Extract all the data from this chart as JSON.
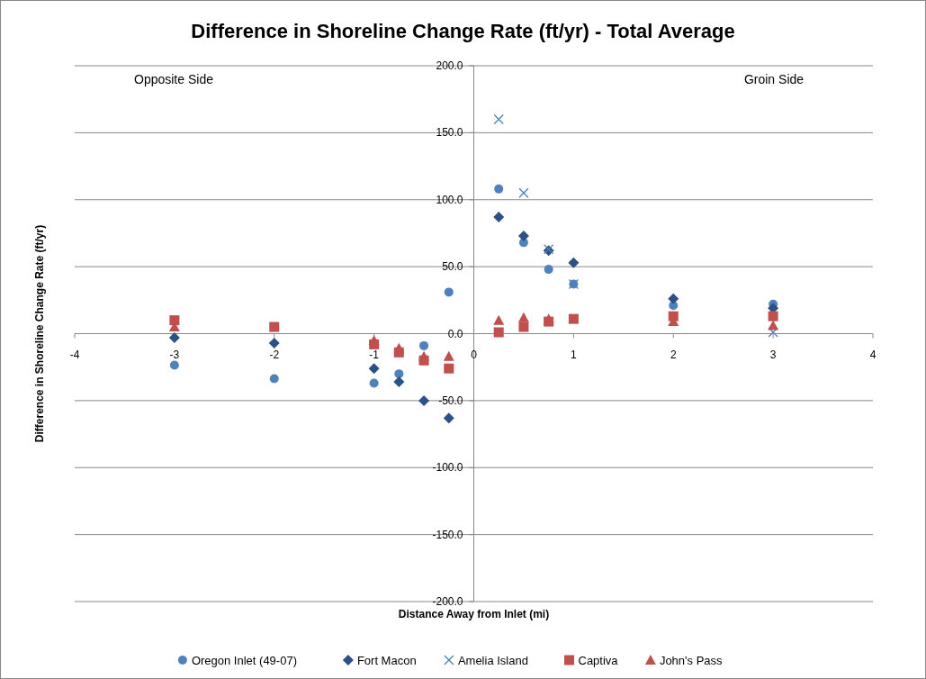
{
  "chart_data": {
    "type": "scatter",
    "title": "Difference in Shoreline Change Rate (ft/yr) - Total Average",
    "xlabel": "Distance Away from Inlet (mi)",
    "ylabel": "Difference in Shoreline Change Rate (ft/yr)",
    "annotations": [
      "Opposite Side",
      "Groin Side"
    ],
    "x": [
      -3,
      -2,
      -1,
      -0.75,
      -0.5,
      -0.25,
      0.25,
      0.5,
      0.75,
      1,
      2,
      3
    ],
    "series": [
      {
        "name": "Oregon Inlet (49-07)",
        "color": "#4f81bd",
        "marker": "circle",
        "values": [
          -23.5,
          -33.6,
          -37,
          -30,
          -9,
          31,
          108,
          68,
          48,
          37,
          21,
          22
        ]
      },
      {
        "name": "Fort Macon",
        "color": "#2c5185",
        "marker": "diamond",
        "values": [
          -3,
          -7,
          -26,
          -36,
          -50,
          -63,
          87,
          73,
          62,
          53,
          26,
          19
        ]
      },
      {
        "name": "Amelia Island",
        "color": "#4f81bd",
        "marker": "cross",
        "x": [
          0.25,
          0.5,
          0.75,
          1,
          3
        ],
        "values": [
          160,
          105,
          63,
          37,
          1
        ]
      },
      {
        "name": "Captiva",
        "color": "#c0504d",
        "marker": "square",
        "values": [
          10,
          5,
          -8,
          -14,
          -20,
          -26,
          1,
          5,
          9,
          11,
          13,
          13
        ]
      },
      {
        "name": "John's Pass",
        "color": "#c0504d",
        "marker": "triangle",
        "values": [
          5,
          null,
          -5,
          -11,
          -17,
          -17,
          10,
          12,
          11,
          null,
          9,
          6
        ]
      }
    ],
    "xlim": [
      -4,
      4
    ],
    "xticks": [
      -4,
      -3,
      -2,
      -1,
      0,
      1,
      2,
      3,
      4
    ],
    "ylim": [
      -200,
      200
    ],
    "yticks": [
      {
        "value": -200,
        "label": "-200.0"
      },
      {
        "value": -150,
        "label": "-150.0"
      },
      {
        "value": -100,
        "label": "-100.0"
      },
      {
        "value": -50,
        "label": "-50.0"
      },
      {
        "value": 0,
        "label": "0.0"
      },
      {
        "value": 50,
        "label": "50.0"
      },
      {
        "value": 100,
        "label": "100.0"
      },
      {
        "value": 150,
        "label": "150.0"
      },
      {
        "value": 200,
        "label": "200.0"
      }
    ],
    "grid": "y",
    "legend": "bottom"
  }
}
